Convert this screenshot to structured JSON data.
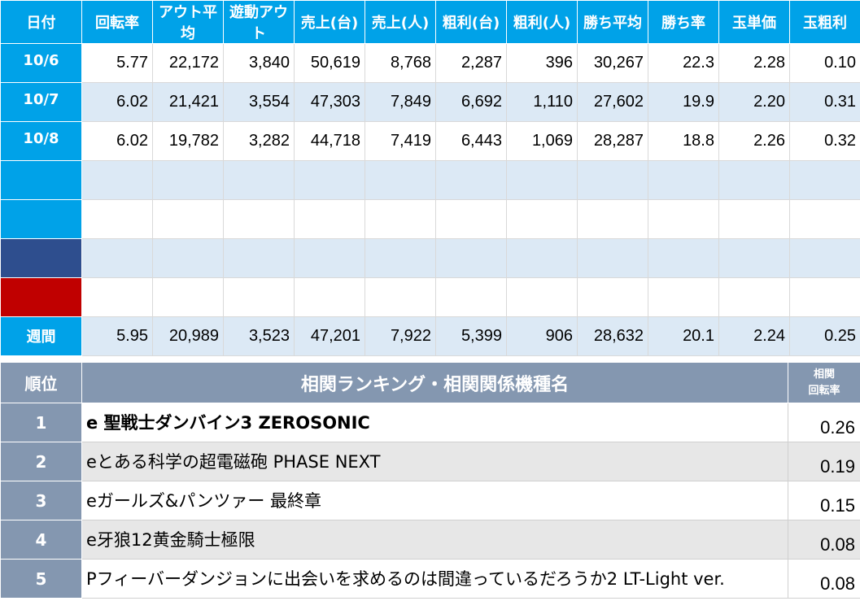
{
  "stats": {
    "headers": [
      "日付",
      "回転率",
      "アウト平均",
      "遊動アウト",
      "売上(台)",
      "売上(人)",
      "粗利(台)",
      "粗利(人)",
      "勝ち平均",
      "勝ち率",
      "玉単価",
      "玉粗利"
    ],
    "rows": [
      {
        "date": "10/6",
        "values": [
          "5.77",
          "22,172",
          "3,840",
          "50,619",
          "8,768",
          "2,287",
          "396",
          "30,267",
          "22.3",
          "2.28",
          "0.10"
        ]
      },
      {
        "date": "10/7",
        "values": [
          "6.02",
          "21,421",
          "3,554",
          "47,303",
          "7,849",
          "6,692",
          "1,110",
          "27,602",
          "19.9",
          "2.20",
          "0.31"
        ]
      },
      {
        "date": "10/8",
        "values": [
          "6.02",
          "19,782",
          "3,282",
          "44,718",
          "7,419",
          "6,443",
          "1,069",
          "28,287",
          "18.8",
          "2.26",
          "0.32"
        ]
      },
      {
        "date": "",
        "values": [
          "",
          "",
          "",
          "",
          "",
          "",
          "",
          "",
          "",
          "",
          ""
        ]
      },
      {
        "date": "",
        "values": [
          "",
          "",
          "",
          "",
          "",
          "",
          "",
          "",
          "",
          "",
          ""
        ]
      },
      {
        "date": "",
        "values": [
          "",
          "",
          "",
          "",
          "",
          "",
          "",
          "",
          "",
          "",
          ""
        ]
      },
      {
        "date": "",
        "values": [
          "",
          "",
          "",
          "",
          "",
          "",
          "",
          "",
          "",
          "",
          ""
        ]
      }
    ],
    "weekly": {
      "label": "週間",
      "values": [
        "5.95",
        "20,989",
        "3,523",
        "47,201",
        "7,922",
        "5,399",
        "906",
        "28,632",
        "20.1",
        "2.24",
        "0.25"
      ]
    }
  },
  "ranking": {
    "header_rank": "順位",
    "header_name": "相関ランキング・相関関係機種名",
    "header_corr_line1": "相関",
    "header_corr_line2": "回転率",
    "rows": [
      {
        "rank": "1",
        "name": "e 聖戦士ダンバイン3 ZEROSONIC",
        "value": "0.26"
      },
      {
        "rank": "2",
        "name": "eとある科学の超電磁砲 PHASE NEXT",
        "value": "0.19"
      },
      {
        "rank": "3",
        "name": "eガールズ&パンツァー 最終章",
        "value": "0.15"
      },
      {
        "rank": "4",
        "name": "e牙狼12黄金騎士極限",
        "value": "0.08"
      },
      {
        "rank": "5",
        "name": "Pフィーバーダンジョンに出会いを求めるのは間違っているだろうか2 LT-Light ver.",
        "value": "0.08"
      }
    ]
  },
  "colors": {
    "header_blue": "#00a2e8",
    "row_stripe": "#dce9f5",
    "navy": "#2e4e8e",
    "red": "#c00000",
    "rank_header": "#8497b0"
  }
}
